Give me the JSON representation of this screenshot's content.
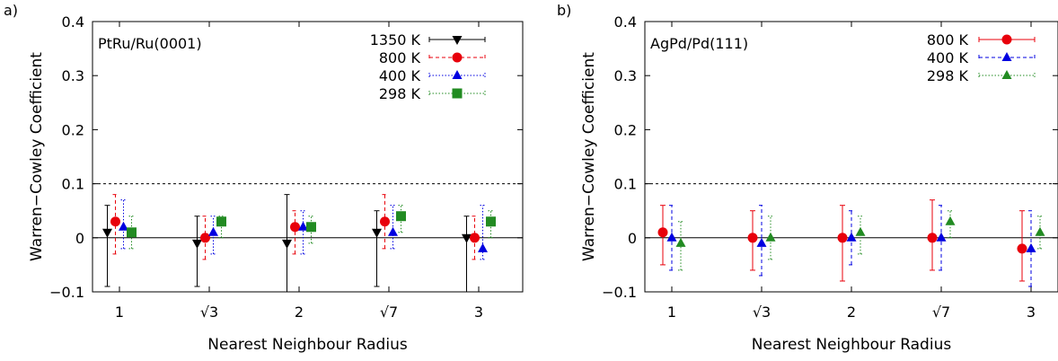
{
  "chart_data": [
    {
      "type": "scatter",
      "panel_label": "a)",
      "annotation": "PtRu/Ru(0001)",
      "ylabel": "Warren−Cowley Coefficient",
      "xlabel": "Nearest Neighbour Radius",
      "categories": [
        "1",
        "√3",
        "2",
        "√7",
        "3"
      ],
      "ylim": [
        -0.1,
        0.4
      ],
      "yticks": [
        -0.1,
        0,
        0.1,
        0.2,
        0.3,
        0.4
      ],
      "ytick_labels": [
        "−0.1",
        "0",
        "0.1",
        "0.2",
        "0.3",
        "0.4"
      ],
      "reference_line": 0.1,
      "legend_position": "top-right",
      "series": [
        {
          "name": "1350 K",
          "color": "#000000",
          "marker": "triangle-down",
          "line": "solid",
          "values": [
            0.01,
            -0.01,
            -0.01,
            0.01,
            0.0
          ],
          "err_low": [
            -0.09,
            -0.09,
            -0.1,
            -0.09,
            -0.1
          ],
          "err_high": [
            0.06,
            0.04,
            0.08,
            0.05,
            0.04
          ]
        },
        {
          "name": "800 K",
          "color": "#e8000b",
          "marker": "circle",
          "line": "dashed",
          "values": [
            0.03,
            0.0,
            0.02,
            0.03,
            0.0
          ],
          "err_low": [
            -0.03,
            -0.04,
            -0.03,
            -0.02,
            -0.04
          ],
          "err_high": [
            0.08,
            0.04,
            0.05,
            0.08,
            0.04
          ]
        },
        {
          "name": "400 K",
          "color": "#0000e0",
          "marker": "triangle-up",
          "line": "dotted",
          "values": [
            0.02,
            0.01,
            0.02,
            0.01,
            -0.02
          ],
          "err_low": [
            -0.02,
            -0.03,
            -0.03,
            -0.02,
            -0.04
          ],
          "err_high": [
            0.07,
            0.04,
            0.05,
            0.06,
            0.06
          ]
        },
        {
          "name": "298 K",
          "color": "#228b22",
          "marker": "square",
          "line": "dotted",
          "values": [
            0.01,
            0.03,
            0.02,
            0.04,
            0.03
          ],
          "err_low": [
            -0.02,
            0.0,
            -0.01,
            0.01,
            0.0
          ],
          "err_high": [
            0.04,
            0.04,
            0.04,
            0.06,
            0.05
          ]
        }
      ]
    },
    {
      "type": "scatter",
      "panel_label": "b)",
      "annotation": "AgPd/Pd(111)",
      "ylabel": "Warren−Cowley Coefficient",
      "xlabel": "Nearest Neighbour Radius",
      "categories": [
        "1",
        "√3",
        "2",
        "√7",
        "3"
      ],
      "ylim": [
        -0.1,
        0.4
      ],
      "yticks": [
        -0.1,
        0,
        0.1,
        0.2,
        0.3,
        0.4
      ],
      "ytick_labels": [
        "−0.1",
        "0",
        "0.1",
        "0.2",
        "0.3",
        "0.4"
      ],
      "reference_line": 0.1,
      "legend_position": "top-right",
      "series": [
        {
          "name": "800 K",
          "color": "#e8000b",
          "marker": "circle",
          "line": "solid",
          "values": [
            0.01,
            0.0,
            0.0,
            0.0,
            -0.02
          ],
          "err_low": [
            -0.05,
            -0.06,
            -0.08,
            -0.06,
            -0.08
          ],
          "err_high": [
            0.06,
            0.05,
            0.06,
            0.07,
            0.05
          ]
        },
        {
          "name": "400 K",
          "color": "#0000e0",
          "marker": "triangle-up",
          "line": "dashed",
          "values": [
            0.0,
            -0.01,
            0.0,
            0.0,
            -0.02
          ],
          "err_low": [
            -0.06,
            -0.07,
            -0.05,
            -0.06,
            -0.09
          ],
          "err_high": [
            0.06,
            0.06,
            0.05,
            0.06,
            0.05
          ]
        },
        {
          "name": "298 K",
          "color": "#228b22",
          "marker": "triangle-up",
          "line": "dotted",
          "values": [
            -0.01,
            0.0,
            0.01,
            0.03,
            0.01
          ],
          "err_low": [
            -0.06,
            -0.04,
            -0.03,
            0.0,
            -0.02
          ],
          "err_high": [
            0.03,
            0.04,
            0.04,
            0.05,
            0.04
          ]
        }
      ]
    }
  ]
}
